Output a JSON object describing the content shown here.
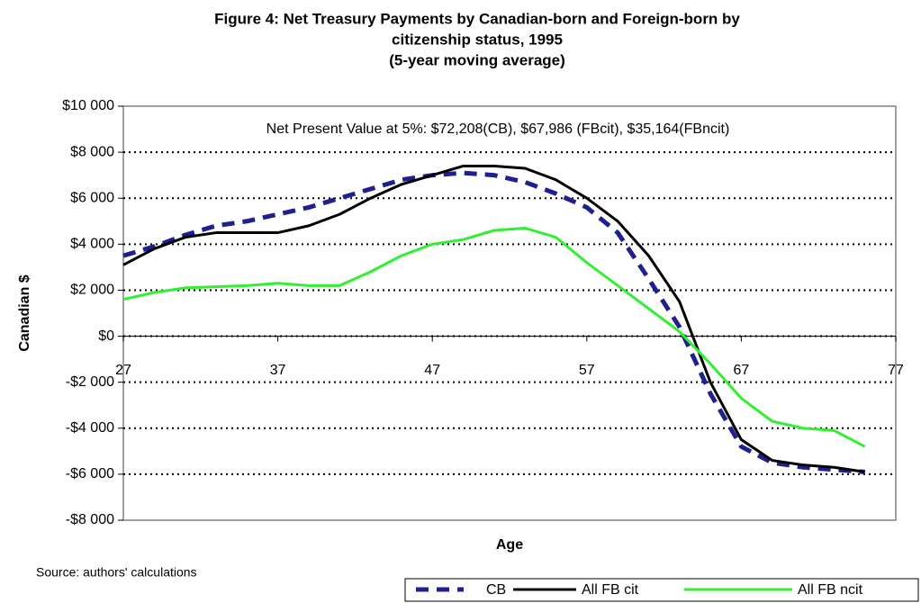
{
  "chart_data": {
    "type": "line",
    "title": [
      "Figure 4: Net Treasury Payments by Canadian-born and Foreign-born by",
      "citizenship status, 1995",
      "(5-year moving average)"
    ],
    "annotation": "Net Present Value at 5%: $72,208(CB), $67,986 (FBcit), $35,164(FBncit)",
    "x_label": "Age",
    "y_label": "Canadian $",
    "source": "Source: authors' calculations",
    "x": [
      27,
      29,
      31,
      33,
      35,
      37,
      39,
      41,
      43,
      45,
      47,
      49,
      51,
      53,
      55,
      57,
      59,
      61,
      63,
      65,
      67,
      69,
      71,
      73,
      75
    ],
    "series": [
      {
        "name": "CB",
        "color": "#1f1f8f",
        "dash": true,
        "values": [
          3500,
          3900,
          4400,
          4800,
          5000,
          5300,
          5600,
          6000,
          6400,
          6800,
          7000,
          7100,
          7000,
          6700,
          6200,
          5600,
          4500,
          2500,
          400,
          -2500,
          -4800,
          -5500,
          -5700,
          -5800,
          -5900
        ]
      },
      {
        "name": "All FB cit",
        "color": "#000000",
        "dash": false,
        "values": [
          3100,
          3800,
          4300,
          4500,
          4500,
          4500,
          4800,
          5300,
          6000,
          6600,
          7000,
          7400,
          7400,
          7300,
          6800,
          6000,
          5000,
          3500,
          1500,
          -2000,
          -4500,
          -5400,
          -5600,
          -5700,
          -5900
        ]
      },
      {
        "name": "All FB ncit",
        "color": "#33ee33",
        "dash": false,
        "values": [
          1600,
          1900,
          2100,
          2150,
          2200,
          2300,
          2200,
          2200,
          2800,
          3500,
          4000,
          4200,
          4600,
          4700,
          4300,
          3200,
          2200,
          1200,
          200,
          -1200,
          -2700,
          -3700,
          -4000,
          -4100,
          -4800
        ]
      }
    ],
    "xlim": [
      27,
      77
    ],
    "xticks": [
      27,
      37,
      47,
      57,
      67,
      77
    ],
    "ylim": [
      -8000,
      10000
    ],
    "yticks": [
      {
        "value": -8000,
        "label": "-$8 000"
      },
      {
        "value": -6000,
        "label": "-$6 000"
      },
      {
        "value": -4000,
        "label": "-$4 000"
      },
      {
        "value": -2000,
        "label": "-$2 000"
      },
      {
        "value": 0,
        "label": "$0"
      },
      {
        "value": 2000,
        "label": "$2 000"
      },
      {
        "value": 4000,
        "label": "$4 000"
      },
      {
        "value": 6000,
        "label": "$6 000"
      },
      {
        "value": 8000,
        "label": "$8 000"
      },
      {
        "value": 10000,
        "label": "$10 000"
      }
    ],
    "grid": true,
    "legend": "bottom-right"
  }
}
